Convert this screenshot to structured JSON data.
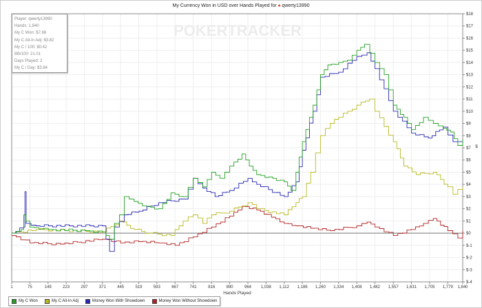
{
  "chart_data": {
    "type": "line",
    "title": "My Currency Won in USD over Hands Played for",
    "player": "qwerty13990",
    "watermark": "POKERTRACKER",
    "xlabel": "Hands Played",
    "ylabel": "$",
    "xlim": [
      1,
      1840
    ],
    "ylim": [
      -4,
      18
    ],
    "grid": true,
    "legend_position": "bottom-left",
    "x_ticks": [
      "1",
      "75",
      "149",
      "223",
      "297",
      "371",
      "445",
      "519",
      "593",
      "667",
      "741",
      "816",
      "890",
      "964",
      "1,038",
      "1,112",
      "1,186",
      "1,260",
      "1,334",
      "1,408",
      "1,482",
      "1,557",
      "1,631",
      "1,705",
      "1,779",
      "1,840"
    ],
    "x_tick_values": [
      1,
      75,
      149,
      223,
      297,
      371,
      445,
      519,
      593,
      667,
      741,
      816,
      890,
      964,
      1038,
      1112,
      1186,
      1260,
      1334,
      1408,
      1482,
      1557,
      1631,
      1705,
      1779,
      1840
    ],
    "y_ticks": [
      "$18",
      "$17",
      "$16",
      "$15",
      "$14",
      "$13",
      "$12",
      "$11",
      "$10",
      "$9",
      "$8",
      "$7",
      "$6",
      "$5",
      "$4",
      "$3",
      "$2",
      "$1",
      "$0",
      "$-1",
      "$-2",
      "$-3",
      "$-4"
    ],
    "y_tick_values": [
      18,
      17,
      16,
      15,
      14,
      13,
      12,
      11,
      10,
      9,
      8,
      7,
      6,
      5,
      4,
      3,
      2,
      1,
      0,
      -1,
      -2,
      -3,
      -4
    ],
    "series": [
      {
        "name": "My C Won",
        "color": "#22a022",
        "x": [
          1,
          40,
          50,
          60,
          75,
          150,
          300,
          371,
          400,
          420,
          440,
          460,
          500,
          550,
          600,
          650,
          700,
          741,
          780,
          816,
          850,
          890,
          940,
          970,
          1000,
          1050,
          1112,
          1140,
          1160,
          1186,
          1200,
          1230,
          1260,
          1290,
          1334,
          1370,
          1408,
          1440,
          1482,
          1520,
          1557,
          1600,
          1631,
          1680,
          1720,
          1760,
          1790,
          1820,
          1840
        ],
        "y": [
          0,
          0.3,
          1.5,
          1.0,
          0.5,
          0.3,
          0.2,
          0.1,
          -0.5,
          0.8,
          1.5,
          3,
          2.6,
          2.2,
          2.0,
          3.3,
          3.0,
          4.5,
          3.8,
          5,
          4.5,
          5.5,
          6.5,
          5.5,
          4.8,
          4.6,
          4.2,
          3.5,
          5,
          7.5,
          8.5,
          10.5,
          13,
          13.8,
          14,
          14.2,
          15,
          15.5,
          14,
          13,
          10.5,
          9.5,
          8.5,
          9.5,
          9,
          8.6,
          8.3,
          7.2,
          7.7
        ]
      },
      {
        "name": "My C All-In Adj",
        "color": "#b8b822",
        "x": [
          1,
          100,
          371,
          440,
          500,
          560,
          650,
          700,
          741,
          780,
          816,
          890,
          964,
          1000,
          1112,
          1160,
          1186,
          1220,
          1260,
          1300,
          1334,
          1408,
          1460,
          1482,
          1557,
          1600,
          1650,
          1720,
          1779,
          1800,
          1840
        ],
        "y": [
          0,
          0.3,
          0.1,
          1.0,
          0.3,
          0,
          -0.2,
          1,
          1.5,
          0.8,
          1.5,
          1.8,
          2.5,
          2.0,
          1.5,
          2.5,
          3,
          5,
          8,
          9,
          9.5,
          10.5,
          11,
          10,
          7.5,
          5.5,
          4.8,
          5,
          3.8,
          3.2,
          3.8
        ]
      },
      {
        "name": "Money Won With Showdown",
        "color": "#2626b0",
        "x": [
          1,
          50,
          55,
          60,
          100,
          371,
          400,
          420,
          460,
          520,
          600,
          700,
          741,
          780,
          830,
          890,
          964,
          1000,
          1112,
          1160,
          1186,
          1230,
          1260,
          1334,
          1408,
          1450,
          1482,
          1557,
          1631,
          1700,
          1760,
          1800,
          1840
        ],
        "y": [
          0,
          0.5,
          3.4,
          0.8,
          0.6,
          0.6,
          -1.5,
          0.5,
          1.5,
          1.8,
          2.5,
          2.8,
          4.5,
          3.7,
          3,
          3.5,
          4.5,
          4,
          3,
          4.2,
          6.8,
          10,
          12.8,
          13.2,
          14.5,
          14.8,
          13.5,
          10,
          8.2,
          7.8,
          8.7,
          7.5,
          7.6
        ]
      },
      {
        "name": "Money Won Without Showdown",
        "color": "#b02020",
        "x": [
          1,
          75,
          200,
          371,
          445,
          519,
          600,
          667,
          741,
          816,
          890,
          940,
          1000,
          1060,
          1112,
          1160,
          1220,
          1300,
          1408,
          1450,
          1482,
          1557,
          1631,
          1680,
          1720,
          1779,
          1820,
          1840
        ],
        "y": [
          -0.2,
          -0.8,
          -0.9,
          -0.5,
          -0.8,
          -0.7,
          -0.8,
          -1,
          -0.3,
          0.5,
          1.4,
          2.2,
          1.9,
          1.3,
          0.8,
          0.6,
          0.4,
          0.2,
          0.6,
          0.9,
          0.5,
          -0.2,
          0.3,
          0.8,
          1.2,
          0.2,
          -0.4,
          0.2
        ]
      }
    ]
  },
  "infobox": [
    "Player: qwerty13990",
    "Hands: 1,840",
    "My C Won: $7.68",
    "My C All-In Adj: $3.82",
    "My C / 100: $0.42",
    "BB/100: 21.01",
    "Days Played: 2",
    "My C / Day: $3.84"
  ]
}
